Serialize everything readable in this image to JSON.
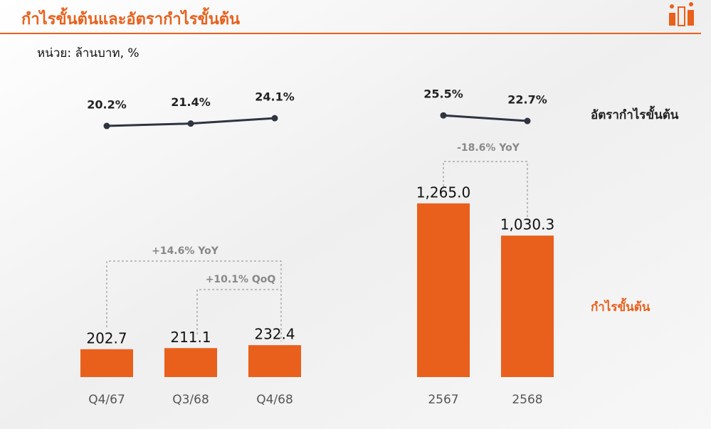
{
  "chart_data": {
    "type": "bar",
    "title": "กำไรขั้นต้นและอัตรากำไรขั้นต้น",
    "subtitle": "หน่วย: ล้านบาท, %",
    "categories": [
      "Q4/67",
      "Q3/68",
      "Q4/68",
      "2567",
      "2568"
    ],
    "series": [
      {
        "name": "กำไรขั้นต้น",
        "type": "bar",
        "color": "#e8601c",
        "values": [
          202.7,
          211.1,
          232.4,
          1265.0,
          1030.3
        ],
        "value_labels": [
          "202.7",
          "211.1",
          "232.4",
          "1,265.0",
          "1,030.3"
        ]
      },
      {
        "name": "อัตรากำไรขั้นต้น",
        "type": "line",
        "color": "#2e3440",
        "values": [
          20.2,
          21.4,
          24.1,
          25.5,
          22.7
        ],
        "value_labels": [
          "20.2%",
          "21.4%",
          "24.1%",
          "25.5%",
          "22.7%"
        ]
      }
    ],
    "annotations": [
      "+14.6% YoY",
      "+10.1% QoQ",
      "-18.6% YoY"
    ]
  }
}
